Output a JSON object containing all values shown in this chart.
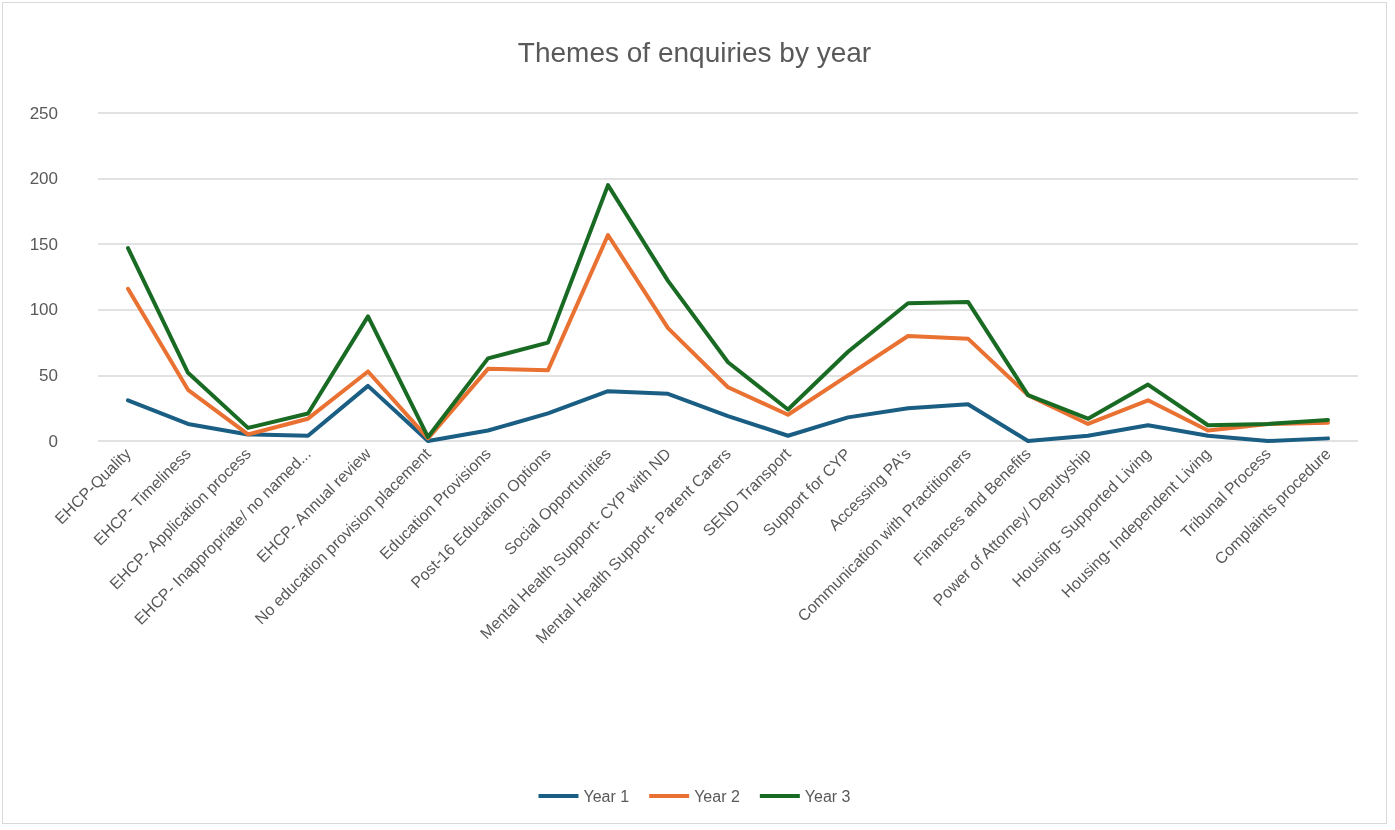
{
  "chart_data": {
    "type": "line",
    "title": "Themes of enquiries by year",
    "categories": [
      "EHCP-Quality",
      "EHCP- Timeliness",
      "EHCP- Application process",
      "EHCP- Inappropriate/ no named...",
      "EHCP- Annual review",
      "No education provision placement",
      "Education Provisions",
      "Post-16 Education Options",
      "Social Opportunities",
      "Mental Health Support- CYP with ND",
      "Mental Health Support- Parent Carers",
      "SEND Transport",
      "Support for CYP",
      "Accessing PA's",
      "Communication with Practitioners",
      "Finances and Benefits",
      "Power of Attorney/ Deputyship",
      "Housing- Supported Living",
      "Housing- Independent Living",
      "Tribunal Process",
      "Complaints procedure"
    ],
    "series": [
      {
        "name": "Year 1",
        "color": "#1a5e84",
        "values": [
          31,
          13,
          5,
          4,
          42,
          0,
          8,
          21,
          38,
          36,
          19,
          4,
          18,
          25,
          28,
          0,
          4,
          12,
          4,
          0,
          2
        ]
      },
      {
        "name": "Year 2",
        "color": "#e97132",
        "values": [
          116,
          39,
          5,
          17,
          53,
          2,
          55,
          54,
          157,
          86,
          41,
          20,
          50,
          80,
          78,
          35,
          13,
          31,
          8,
          13,
          14
        ]
      },
      {
        "name": "Year 3",
        "color": "#196b24",
        "values": [
          147,
          52,
          10,
          21,
          95,
          3,
          63,
          75,
          195,
          122,
          60,
          24,
          68,
          105,
          106,
          35,
          17,
          43,
          12,
          13,
          16
        ]
      }
    ],
    "ylim": [
      0,
      250
    ],
    "yticks": [
      0,
      50,
      100,
      150,
      200,
      250
    ],
    "grid": "y",
    "legend": "bottom",
    "marker": "none",
    "line_style": "solid"
  }
}
